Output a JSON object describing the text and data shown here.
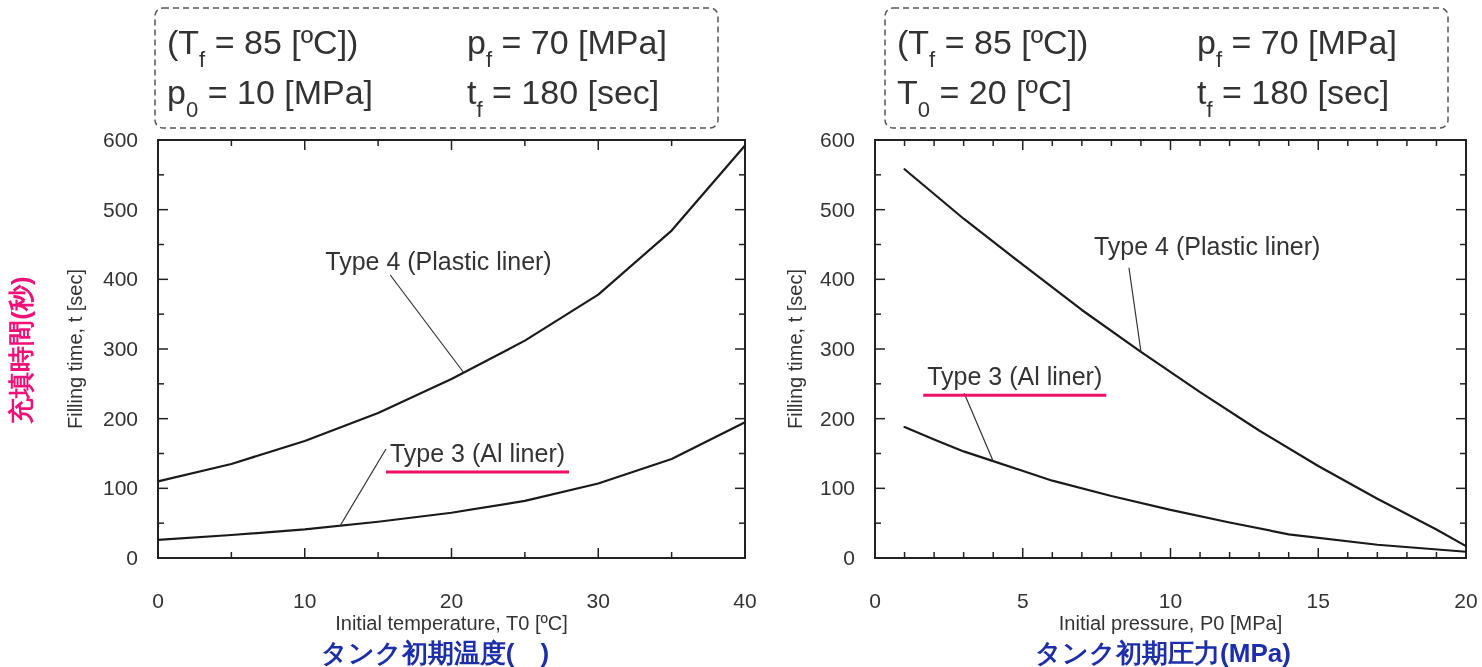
{
  "chart_data": [
    {
      "type": "line",
      "xlabel": "Initial temperature, T0 [ºC]",
      "ylabel": "Filling time, t [sec]",
      "xlim": [
        0,
        40
      ],
      "ylim": [
        0,
        600
      ],
      "xticks": [
        0,
        {
          "value": 5,
          "label": null
        },
        10,
        {
          "value": 15,
          "label": null
        },
        20,
        {
          "value": 25,
          "label": null
        },
        30,
        {
          "value": 35,
          "label": null
        },
        40
      ],
      "yticks": [
        0,
        {
          "value": 50,
          "label": null
        },
        100,
        {
          "value": 150,
          "label": null
        },
        200,
        {
          "value": 250,
          "label": null
        },
        300,
        {
          "value": 350,
          "label": null
        },
        400,
        {
          "value": 450,
          "label": null
        },
        500,
        {
          "value": 550,
          "label": null
        },
        600
      ],
      "series": [
        {
          "color": "#1a1a1a",
          "x": [
            0,
            5,
            10,
            15,
            20,
            25,
            30,
            35,
            40
          ],
          "values": [
            110,
            135,
            168,
            208,
            257,
            312,
            378,
            470,
            592
          ]
        },
        {
          "color": "#1a1a1a",
          "x": [
            0,
            5,
            10,
            15,
            20,
            25,
            30,
            35,
            40
          ],
          "values": [
            26,
            33,
            41,
            52,
            65,
            82,
            107,
            142,
            195
          ]
        }
      ],
      "annotations": [
        "(T$_{f}$ = 85 [ºC])",
        "p$_{f}$ = 70 [MPa]",
        "p$_{0}$ = 10 [MPa]",
        "t$_{f}$ = 180 [sec]",
        "タンク初期温度(　)",
        "充填時間(秒)",
        {
          "text": "Type 4 (Plastic liner)",
          "x": 20.8,
          "y": 267
        },
        {
          "text": "Type 3 (Al liner)",
          "x": 12.4,
          "y": 46
        }
      ]
    },
    {
      "type": "line",
      "xlabel": "Initial pressure, P0 [MPa]",
      "ylabel": "Filling time, t [sec]",
      "xlim": [
        0,
        20
      ],
      "ylim": [
        0,
        600
      ],
      "xticks": [
        0,
        {
          "value": 1,
          "label": null
        },
        {
          "value": 2,
          "label": null
        },
        {
          "value": 3,
          "label": null
        },
        {
          "value": 4,
          "label": null
        },
        5,
        {
          "value": 6,
          "label": null
        },
        {
          "value": 7,
          "label": null
        },
        {
          "value": 8,
          "label": null
        },
        {
          "value": 9,
          "label": null
        },
        10,
        {
          "value": 11,
          "label": null
        },
        {
          "value": 12,
          "label": null
        },
        {
          "value": 13,
          "label": null
        },
        {
          "value": 14,
          "label": null
        },
        15,
        {
          "value": 16,
          "label": null
        },
        {
          "value": 17,
          "label": null
        },
        {
          "value": 18,
          "label": null
        },
        {
          "value": 19,
          "label": null
        },
        20
      ],
      "yticks": [
        0,
        {
          "value": 50,
          "label": null
        },
        100,
        {
          "value": 150,
          "label": null
        },
        200,
        {
          "value": 250,
          "label": null
        },
        300,
        {
          "value": 350,
          "label": null
        },
        400,
        {
          "value": 450,
          "label": null
        },
        500,
        {
          "value": 550,
          "label": null
        },
        600
      ],
      "series": [
        {
          "color": "#1a1a1a",
          "x": [
            1,
            3,
            5,
            7,
            9,
            11,
            13,
            15,
            17,
            19,
            20
          ],
          "values": [
            558,
            487,
            421,
            356,
            296,
            238,
            183,
            132,
            85,
            41,
            17
          ]
        },
        {
          "color": "#1a1a1a",
          "x": [
            1,
            2,
            3,
            4,
            6,
            8,
            10,
            12,
            14,
            17,
            20
          ],
          "values": [
            188,
            170,
            153,
            139,
            111,
            89,
            69,
            51,
            34,
            19,
            9
          ]
        }
      ],
      "annotations": [
        "(T$_{f}$ = 85 [ºC])",
        "p$_{f}$ = 70 [MPa]",
        "T$_{0}$ = 20 [ºC]",
        "t$_{f}$ = 180 [sec]",
        "タンク初期圧力(MPa)",
        {
          "text": "Type 4 (Plastic liner)",
          "x": 9,
          "y": 296
        },
        {
          "text": "Type 3 (Al liner)",
          "x": 4,
          "y": 139
        }
      ]
    }
  ]
}
